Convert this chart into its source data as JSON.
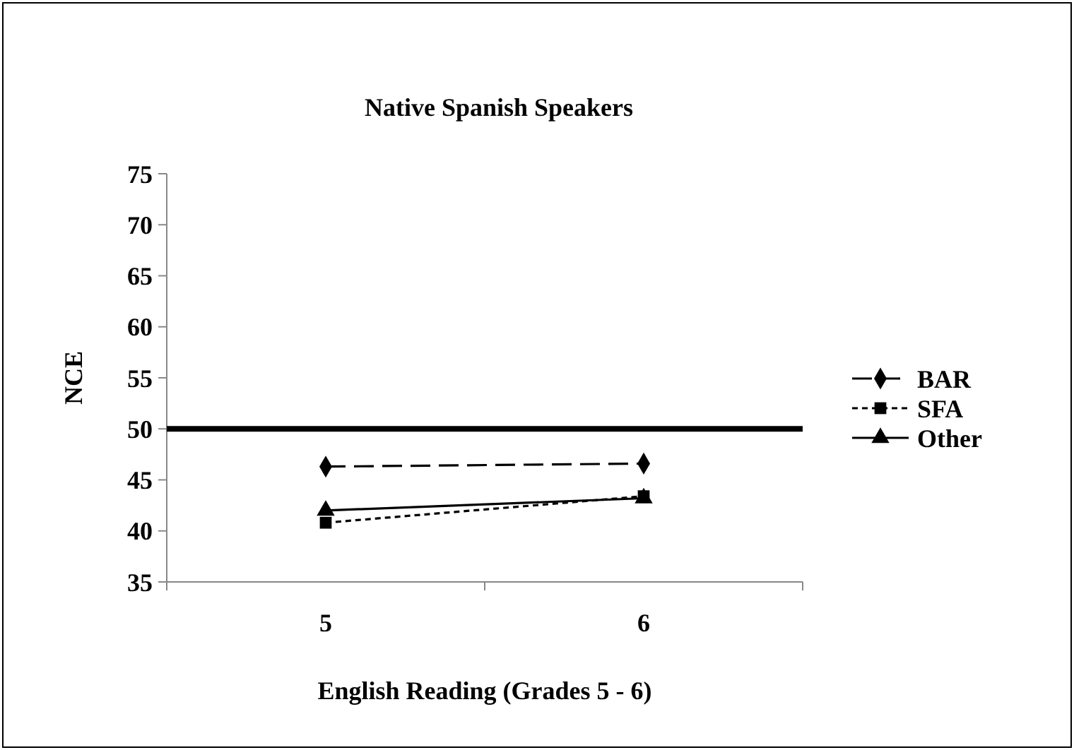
{
  "chart_data": {
    "type": "line",
    "title": "Native Spanish Speakers",
    "xlabel": "English Reading (Grades 5 - 6)",
    "ylabel": "NCE",
    "categories": [
      "5",
      "6"
    ],
    "series": [
      {
        "name": "BAR",
        "color": "#000000",
        "values": [
          46.3,
          46.6
        ],
        "marker": "diamond",
        "line_style": "dashed"
      },
      {
        "name": "SFA",
        "color": "#000000",
        "values": [
          40.8,
          43.4
        ],
        "marker": "square",
        "line_style": "dotted"
      },
      {
        "name": "Other",
        "color": "#000000",
        "values": [
          42.0,
          43.2
        ],
        "marker": "triangle",
        "line_style": "solid"
      }
    ],
    "ylim": [
      35,
      75
    ],
    "yticks": [
      35,
      40,
      45,
      50,
      55,
      60,
      65,
      70,
      75
    ],
    "ref_lines": [
      {
        "axis": "y",
        "value": 50,
        "color": "#000000"
      }
    ],
    "legend": "right",
    "grid": false
  }
}
